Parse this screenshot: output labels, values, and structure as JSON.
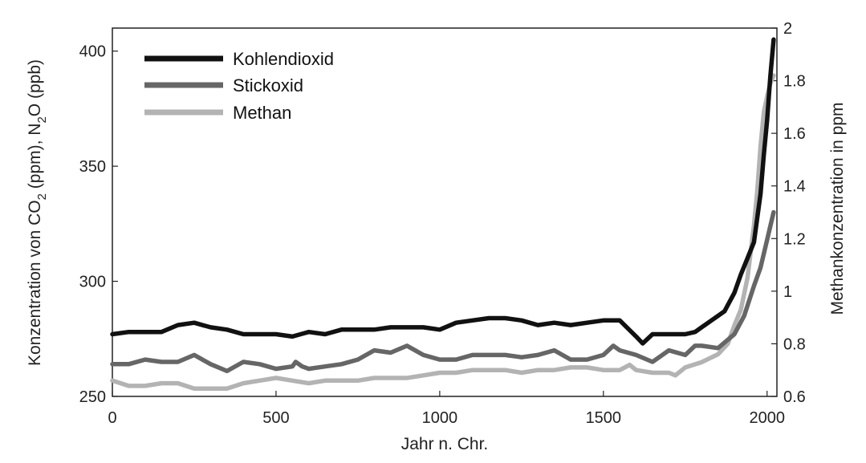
{
  "chart_data": {
    "type": "line",
    "xlabel": "Jahr n. Chr.",
    "ylabel_left": {
      "pre": "Konzentration von CO",
      "sub1": "2",
      "mid": " (ppm), N",
      "sub2": "2",
      "post": "O (ppb)"
    },
    "ylabel_right": "Methankonzentration in ppm",
    "xlim": [
      0,
      2030
    ],
    "ylim_left": [
      250,
      410
    ],
    "ylim_right": [
      0.6,
      2.0
    ],
    "x_ticks": [
      0,
      500,
      1000,
      1500,
      2000
    ],
    "y_ticks_left": [
      250,
      300,
      350,
      400
    ],
    "y_ticks_right": [
      0.6,
      0.8,
      1,
      1.2,
      1.4,
      1.6,
      1.8,
      2
    ],
    "grid": false,
    "legend_position": "top-left",
    "series": [
      {
        "name": "Kohlendioxid",
        "axis": "left",
        "color": "#111111",
        "points": [
          [
            0,
            277
          ],
          [
            50,
            278
          ],
          [
            100,
            278
          ],
          [
            150,
            278
          ],
          [
            200,
            281
          ],
          [
            250,
            282
          ],
          [
            300,
            280
          ],
          [
            350,
            279
          ],
          [
            400,
            277
          ],
          [
            450,
            277
          ],
          [
            500,
            277
          ],
          [
            550,
            276
          ],
          [
            600,
            278
          ],
          [
            650,
            277
          ],
          [
            700,
            279
          ],
          [
            750,
            279
          ],
          [
            800,
            279
          ],
          [
            850,
            280
          ],
          [
            900,
            280
          ],
          [
            950,
            280
          ],
          [
            1000,
            279
          ],
          [
            1050,
            282
          ],
          [
            1100,
            283
          ],
          [
            1150,
            284
          ],
          [
            1200,
            284
          ],
          [
            1250,
            283
          ],
          [
            1300,
            281
          ],
          [
            1350,
            282
          ],
          [
            1400,
            281
          ],
          [
            1450,
            282
          ],
          [
            1500,
            283
          ],
          [
            1550,
            283
          ],
          [
            1600,
            276
          ],
          [
            1620,
            273
          ],
          [
            1650,
            277
          ],
          [
            1700,
            277
          ],
          [
            1750,
            277
          ],
          [
            1780,
            278
          ],
          [
            1800,
            280
          ],
          [
            1820,
            282
          ],
          [
            1850,
            285
          ],
          [
            1870,
            287
          ],
          [
            1900,
            295
          ],
          [
            1920,
            303
          ],
          [
            1940,
            310
          ],
          [
            1960,
            317
          ],
          [
            1980,
            338
          ],
          [
            1990,
            355
          ],
          [
            2000,
            370
          ],
          [
            2010,
            389
          ],
          [
            2020,
            405
          ]
        ]
      },
      {
        "name": "Stickoxid",
        "axis": "left",
        "color": "#666666",
        "points": [
          [
            0,
            264
          ],
          [
            50,
            264
          ],
          [
            100,
            266
          ],
          [
            150,
            265
          ],
          [
            200,
            265
          ],
          [
            250,
            268
          ],
          [
            300,
            264
          ],
          [
            350,
            261
          ],
          [
            400,
            265
          ],
          [
            450,
            264
          ],
          [
            500,
            262
          ],
          [
            550,
            263
          ],
          [
            560,
            265
          ],
          [
            580,
            263
          ],
          [
            600,
            262
          ],
          [
            650,
            263
          ],
          [
            700,
            264
          ],
          [
            750,
            266
          ],
          [
            800,
            270
          ],
          [
            850,
            269
          ],
          [
            900,
            272
          ],
          [
            950,
            268
          ],
          [
            1000,
            266
          ],
          [
            1050,
            266
          ],
          [
            1100,
            268
          ],
          [
            1150,
            268
          ],
          [
            1200,
            268
          ],
          [
            1250,
            267
          ],
          [
            1300,
            268
          ],
          [
            1350,
            270
          ],
          [
            1400,
            266
          ],
          [
            1450,
            266
          ],
          [
            1500,
            268
          ],
          [
            1530,
            272
          ],
          [
            1550,
            270
          ],
          [
            1600,
            268
          ],
          [
            1650,
            265
          ],
          [
            1700,
            270
          ],
          [
            1750,
            268
          ],
          [
            1780,
            272
          ],
          [
            1800,
            272
          ],
          [
            1850,
            271
          ],
          [
            1900,
            277
          ],
          [
            1930,
            285
          ],
          [
            1960,
            298
          ],
          [
            1980,
            306
          ],
          [
            2000,
            318
          ],
          [
            2010,
            324
          ],
          [
            2020,
            330
          ]
        ]
      },
      {
        "name": "Methan",
        "axis": "right",
        "color": "#b3b3b3",
        "points": [
          [
            0,
            0.66
          ],
          [
            50,
            0.64
          ],
          [
            100,
            0.64
          ],
          [
            150,
            0.65
          ],
          [
            200,
            0.65
          ],
          [
            250,
            0.63
          ],
          [
            300,
            0.63
          ],
          [
            350,
            0.63
          ],
          [
            400,
            0.65
          ],
          [
            450,
            0.66
          ],
          [
            500,
            0.67
          ],
          [
            550,
            0.66
          ],
          [
            600,
            0.65
          ],
          [
            650,
            0.66
          ],
          [
            700,
            0.66
          ],
          [
            750,
            0.66
          ],
          [
            800,
            0.67
          ],
          [
            850,
            0.67
          ],
          [
            900,
            0.67
          ],
          [
            950,
            0.68
          ],
          [
            1000,
            0.69
          ],
          [
            1050,
            0.69
          ],
          [
            1100,
            0.7
          ],
          [
            1150,
            0.7
          ],
          [
            1200,
            0.7
          ],
          [
            1250,
            0.69
          ],
          [
            1300,
            0.7
          ],
          [
            1350,
            0.7
          ],
          [
            1400,
            0.71
          ],
          [
            1450,
            0.71
          ],
          [
            1500,
            0.7
          ],
          [
            1550,
            0.7
          ],
          [
            1580,
            0.72
          ],
          [
            1600,
            0.7
          ],
          [
            1650,
            0.69
          ],
          [
            1700,
            0.69
          ],
          [
            1720,
            0.68
          ],
          [
            1750,
            0.71
          ],
          [
            1800,
            0.73
          ],
          [
            1850,
            0.76
          ],
          [
            1880,
            0.8
          ],
          [
            1900,
            0.87
          ],
          [
            1920,
            0.93
          ],
          [
            1940,
            1.05
          ],
          [
            1960,
            1.25
          ],
          [
            1970,
            1.38
          ],
          [
            1980,
            1.55
          ],
          [
            1990,
            1.68
          ],
          [
            2000,
            1.74
          ],
          [
            2010,
            1.79
          ],
          [
            2020,
            1.82
          ]
        ]
      }
    ]
  }
}
